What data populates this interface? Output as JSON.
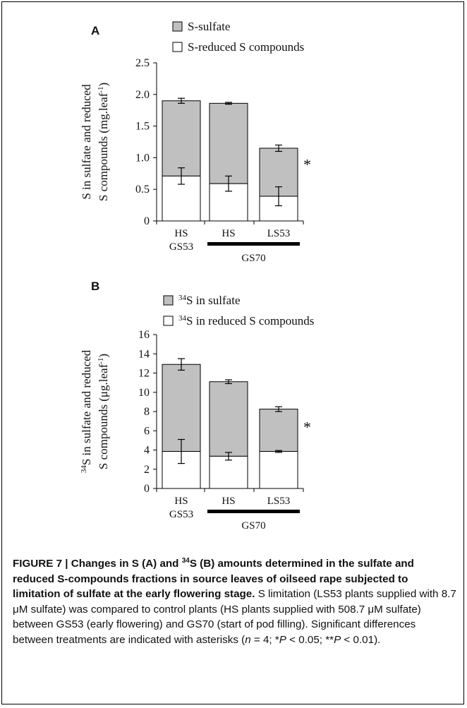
{
  "chart_data": [
    {
      "type": "bar",
      "stacked": true,
      "panel_label": "A",
      "legend": [
        "S-sulfate",
        "S-reduced S compounds"
      ],
      "ylabel_line1": "S in sulfate and reduced",
      "ylabel_line2": "S compounds (mg.leaf",
      "ylabel_sup": "-1",
      "ylabel_tail": ")",
      "ylim": [
        0,
        2.5
      ],
      "yticks": [
        "0",
        "0.5",
        "1.0",
        "1.5",
        "2.0",
        "2.5"
      ],
      "categories": [
        {
          "line1": "HS",
          "line2": "GS53"
        },
        {
          "line1": "HS",
          "line2": ""
        },
        {
          "line1": "LS53",
          "line2": ""
        }
      ],
      "group_label": "GS70",
      "series": [
        {
          "name": "S-reduced S compounds",
          "values": [
            0.71,
            0.59,
            0.39
          ],
          "errors": [
            0.13,
            0.12,
            0.15
          ],
          "color": "#ffffff"
        },
        {
          "name": "S-sulfate",
          "values": [
            1.19,
            1.27,
            0.76
          ],
          "errors": [
            0.04,
            0.015,
            0.05
          ],
          "color": "#c0c0c0"
        }
      ],
      "significance": [
        "",
        "",
        "*"
      ]
    },
    {
      "type": "bar",
      "stacked": true,
      "panel_label": "B",
      "legend": [
        "34S in sulfate",
        "34S in reduced S compounds"
      ],
      "ylabel_line1_sup": "34",
      "ylabel_line1": "S in sulfate and reduced",
      "ylabel_line2": "S compounds (μg.leaf",
      "ylabel_sup": "-1",
      "ylabel_tail": ")",
      "ylim": [
        0,
        16
      ],
      "yticks": [
        "0",
        "2",
        "4",
        "6",
        "8",
        "10",
        "12",
        "14",
        "16"
      ],
      "categories": [
        {
          "line1": "HS",
          "line2": "GS53"
        },
        {
          "line1": "HS",
          "line2": ""
        },
        {
          "line1": "LS53",
          "line2": ""
        }
      ],
      "group_label": "GS70",
      "series": [
        {
          "name": "34S in reduced S compounds",
          "values": [
            3.85,
            3.35,
            3.85
          ],
          "errors": [
            1.25,
            0.4,
            0.1
          ],
          "color": "#ffffff"
        },
        {
          "name": "34S in sulfate",
          "values": [
            9.05,
            7.75,
            4.4
          ],
          "errors": [
            0.6,
            0.2,
            0.25
          ],
          "color": "#c0c0c0"
        }
      ],
      "significance": [
        "",
        "",
        "*"
      ]
    }
  ],
  "caption": {
    "bold_a": "FIGURE 7 | Changes in S (A) and ",
    "bold_sup": "34",
    "bold_b": "S (B) amounts determined in the sulfate and reduced S-compounds fractions in source leaves of oilseed rape subjected to limitation of sulfate at the early flowering stage.",
    "p1": " S limitation (LS53 plants supplied with 8.7 μM sulfate) was compared to control plants (HS plants supplied with 508.7 μM sulfate) between GS53 (early flowering) and GS70 (start of pod filling). Significant differences between treatments are indicated with asterisks (",
    "n_var": "n",
    "p2": " = 4; *",
    "p_var1": "P",
    "p3": " < 0.05; **",
    "p_var2": "P",
    "p4": " < 0.01)."
  }
}
